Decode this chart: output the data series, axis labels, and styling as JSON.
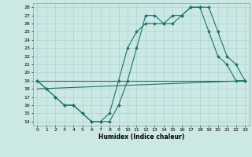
{
  "xlabel": "Humidex (Indice chaleur)",
  "bg_color": "#cce8e4",
  "line_color": "#1e7070",
  "grid_color": "#aad4d0",
  "xlim": [
    -0.5,
    23.5
  ],
  "ylim": [
    13.5,
    28.5
  ],
  "yticks": [
    14,
    15,
    16,
    17,
    18,
    19,
    20,
    21,
    22,
    23,
    24,
    25,
    26,
    27,
    28
  ],
  "xticks": [
    0,
    1,
    2,
    3,
    4,
    5,
    6,
    7,
    8,
    9,
    10,
    11,
    12,
    13,
    14,
    15,
    16,
    17,
    18,
    19,
    20,
    21,
    22,
    23
  ],
  "line1_x": [
    0,
    1,
    2,
    3,
    4,
    5,
    6,
    7,
    8,
    9,
    10,
    11,
    12,
    13,
    14,
    15,
    16,
    17,
    18,
    19,
    20,
    21,
    22,
    23
  ],
  "line1_y": [
    19,
    18,
    17,
    16,
    16,
    15,
    14,
    14,
    14,
    16,
    19,
    23,
    27,
    27,
    26,
    26,
    27,
    28,
    28,
    28,
    25,
    22,
    21,
    19
  ],
  "line2_x": [
    0,
    1,
    2,
    3,
    4,
    5,
    6,
    7,
    8,
    9,
    10,
    11,
    12,
    13,
    14,
    15,
    16,
    17,
    18,
    19,
    20,
    21,
    22,
    23
  ],
  "line2_y": [
    19,
    18,
    17,
    16,
    16,
    15,
    14,
    14,
    15,
    19,
    23,
    25,
    26,
    26,
    26,
    27,
    27,
    28,
    28,
    25,
    22,
    21,
    19,
    19
  ],
  "line3_x": [
    0,
    23
  ],
  "line3_y": [
    19,
    19
  ],
  "line4_x": [
    0,
    23
  ],
  "line4_y": [
    18,
    19
  ]
}
